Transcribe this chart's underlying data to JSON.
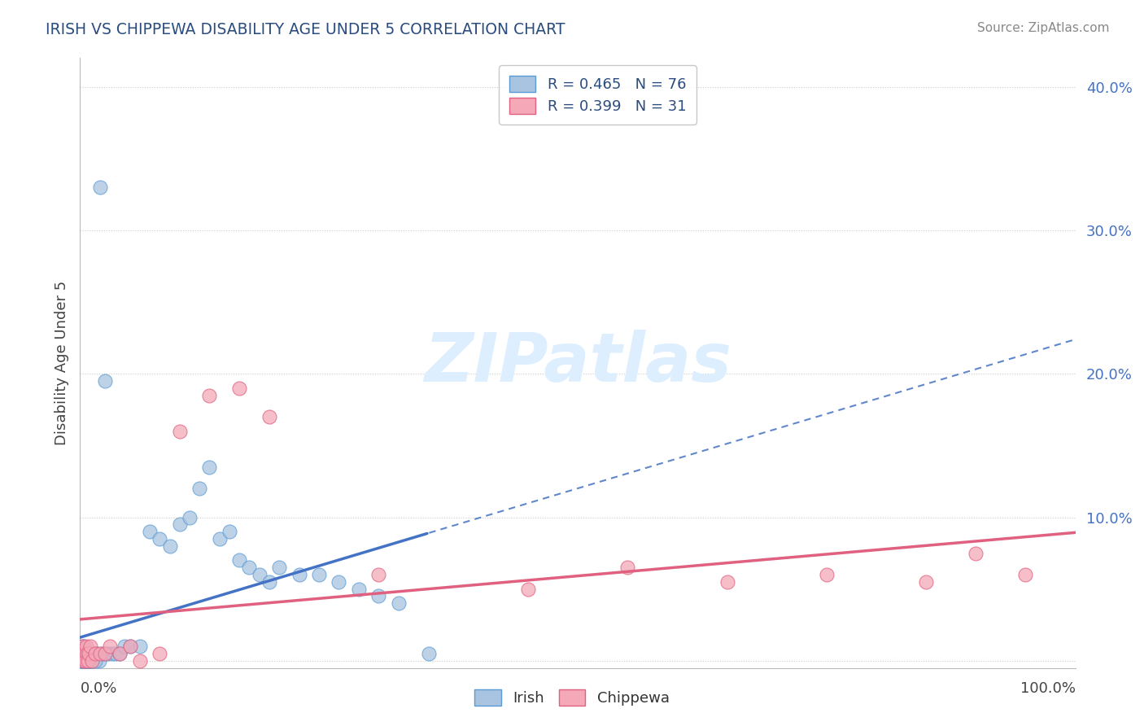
{
  "title": "IRISH VS CHIPPEWA DISABILITY AGE UNDER 5 CORRELATION CHART",
  "source": "Source: ZipAtlas.com",
  "ylabel": "Disability Age Under 5",
  "xlim": [
    0.0,
    1.0
  ],
  "ylim": [
    -0.005,
    0.42
  ],
  "irish_fill_color": "#a8c4e0",
  "irish_edge_color": "#5b9bd5",
  "chippewa_fill_color": "#f4a8b8",
  "chippewa_edge_color": "#e06080",
  "irish_line_color": "#4472c4",
  "chippewa_line_color": "#e06080",
  "ytick_values": [
    0.0,
    0.1,
    0.2,
    0.3,
    0.4
  ],
  "ytick_labels": [
    "",
    "10.0%",
    "20.0%",
    "30.0%",
    "40.0%"
  ],
  "grid_color": "#cccccc",
  "watermark_color": "#ddeeff",
  "irish_x": [
    0.001,
    0.001,
    0.002,
    0.002,
    0.002,
    0.003,
    0.003,
    0.003,
    0.004,
    0.004,
    0.004,
    0.005,
    0.005,
    0.005,
    0.006,
    0.006,
    0.007,
    0.007,
    0.008,
    0.008,
    0.009,
    0.009,
    0.01,
    0.01,
    0.011,
    0.012,
    0.013,
    0.015,
    0.017,
    0.019,
    0.022,
    0.025,
    0.028,
    0.032,
    0.036,
    0.04,
    0.045,
    0.05,
    0.06,
    0.07,
    0.08,
    0.09,
    0.1,
    0.11,
    0.12,
    0.13,
    0.14,
    0.15,
    0.16,
    0.17,
    0.18,
    0.19,
    0.2,
    0.22,
    0.24,
    0.26,
    0.28,
    0.3,
    0.32,
    0.35,
    0.001,
    0.002,
    0.003,
    0.004,
    0.003,
    0.004,
    0.005,
    0.006,
    0.007,
    0.008,
    0.009,
    0.01,
    0.012,
    0.015,
    0.02,
    0.025
  ],
  "irish_y": [
    0.0,
    0.005,
    0.0,
    0.005,
    0.01,
    0.0,
    0.005,
    0.0,
    0.0,
    0.005,
    0.01,
    0.0,
    0.005,
    0.0,
    0.005,
    0.0,
    0.0,
    0.005,
    0.005,
    0.0,
    0.0,
    0.005,
    0.005,
    0.0,
    0.0,
    0.005,
    0.0,
    0.005,
    0.005,
    0.0,
    0.005,
    0.005,
    0.005,
    0.005,
    0.005,
    0.005,
    0.01,
    0.01,
    0.01,
    0.09,
    0.085,
    0.08,
    0.095,
    0.1,
    0.12,
    0.135,
    0.085,
    0.09,
    0.07,
    0.065,
    0.06,
    0.055,
    0.065,
    0.06,
    0.06,
    0.055,
    0.05,
    0.045,
    0.04,
    0.005,
    0.0,
    0.0,
    0.0,
    0.0,
    0.0,
    0.0,
    0.0,
    0.0,
    0.0,
    0.0,
    0.0,
    0.0,
    0.0,
    0.0,
    0.33,
    0.195
  ],
  "chippewa_x": [
    0.001,
    0.002,
    0.003,
    0.004,
    0.005,
    0.006,
    0.007,
    0.008,
    0.009,
    0.01,
    0.012,
    0.015,
    0.02,
    0.025,
    0.03,
    0.04,
    0.05,
    0.06,
    0.08,
    0.1,
    0.13,
    0.16,
    0.19,
    0.3,
    0.45,
    0.55,
    0.65,
    0.75,
    0.85,
    0.9,
    0.95
  ],
  "chippewa_y": [
    0.005,
    0.01,
    0.0,
    0.005,
    0.0,
    0.01,
    0.005,
    0.0,
    0.005,
    0.01,
    0.0,
    0.005,
    0.005,
    0.005,
    0.01,
    0.005,
    0.01,
    0.0,
    0.005,
    0.16,
    0.185,
    0.19,
    0.17,
    0.06,
    0.05,
    0.065,
    0.055,
    0.06,
    0.055,
    0.075,
    0.06
  ]
}
